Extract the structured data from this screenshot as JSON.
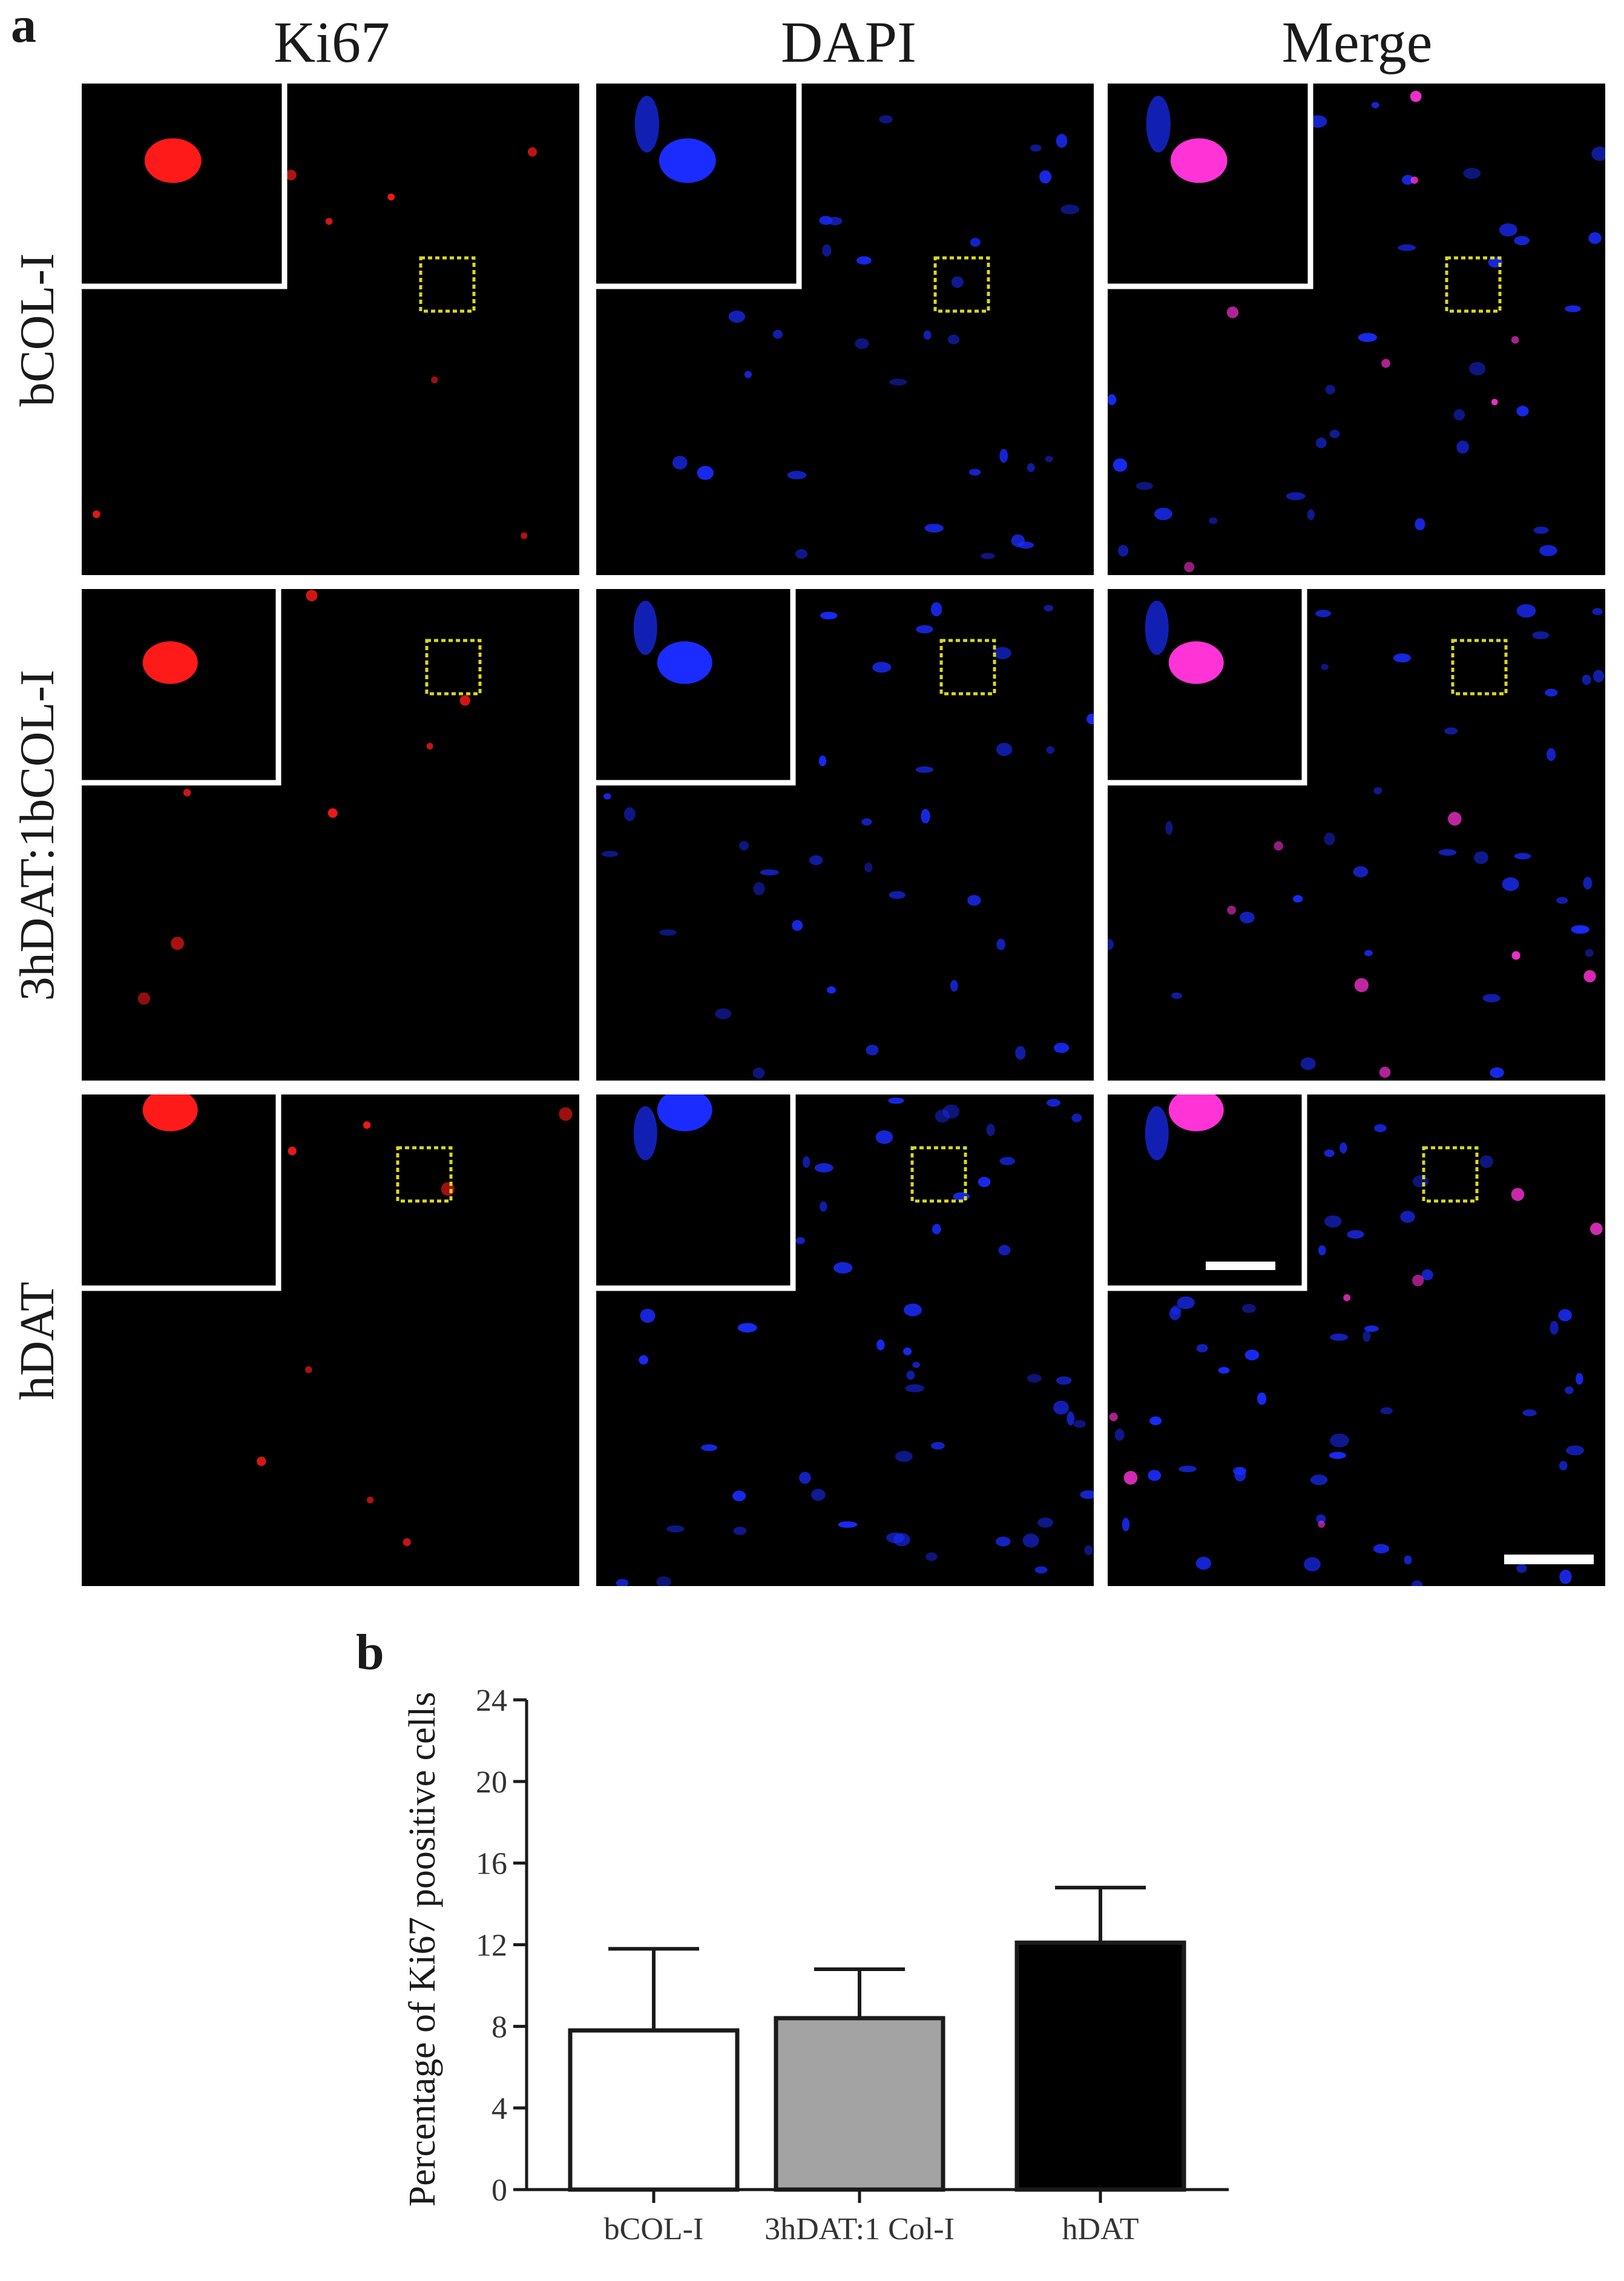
{
  "panel_a": {
    "letter": "a",
    "columns": [
      "Ki67",
      "DAPI",
      "Merge"
    ],
    "rows": [
      "bCOL-I",
      "3hDAT:1bCOL-I",
      "hDAT"
    ]
  },
  "panel_b": {
    "letter": "b"
  },
  "colors": {
    "ki67": "#ff1a1a",
    "dapi": "#1a2cff",
    "merge": "#ff33d6",
    "inset_border": "#ffffff",
    "roi_box": "#d8d820",
    "scale_bar": "#ffffff"
  },
  "chart_data": {
    "type": "bar",
    "title": "",
    "xlabel": "",
    "ylabel": "Percentage of Ki67 poositive cells",
    "ylim": [
      0,
      24
    ],
    "yticks": [
      0,
      4,
      8,
      12,
      16,
      20,
      24
    ],
    "categories": [
      "bCOL-I",
      "3hDAT:1 Col-I",
      "hDAT"
    ],
    "values": [
      7.8,
      8.4,
      12.1
    ],
    "errors": [
      4.0,
      2.4,
      2.7
    ],
    "bar_colors": [
      "#ffffff",
      "#a3a3a3",
      "#000000"
    ],
    "grid": false,
    "legend": "none"
  }
}
